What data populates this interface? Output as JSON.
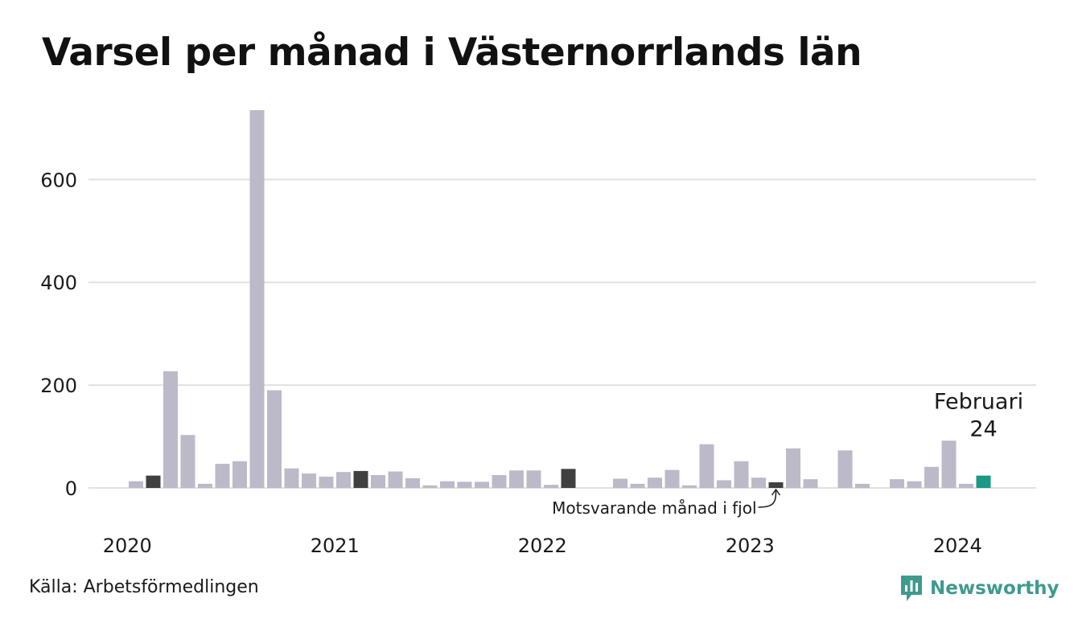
{
  "title": "Varsel per månad i Västernorrlands län",
  "source": "Källa: Arbetsförmedlingen",
  "brand": "Newsworthy",
  "colors": {
    "bar": "#bcbac8",
    "bar_previous_year": "#404040",
    "bar_current": "#1a9985",
    "grid": "#e1e1e1",
    "brand": "#3f9a8e"
  },
  "chart_data": {
    "type": "bar",
    "title": "Varsel per månad i Västernorrlands län",
    "xlabel": "",
    "ylabel": "",
    "ylim": [
      0,
      735
    ],
    "yticks": [
      0,
      200,
      400,
      600
    ],
    "xticks": [
      {
        "label": "2020",
        "category": "2020-01"
      },
      {
        "label": "2021",
        "category": "2021-01"
      },
      {
        "label": "2022",
        "category": "2022-01"
      },
      {
        "label": "2023",
        "category": "2023-01"
      },
      {
        "label": "2024",
        "category": "2024-01"
      }
    ],
    "grid": true,
    "categories": [
      "2020-01",
      "2020-02",
      "2020-03",
      "2020-04",
      "2020-05",
      "2020-06",
      "2020-07",
      "2020-08",
      "2020-09",
      "2020-10",
      "2020-11",
      "2020-12",
      "2021-01",
      "2021-02",
      "2021-03",
      "2021-04",
      "2021-05",
      "2021-06",
      "2021-07",
      "2021-08",
      "2021-09",
      "2021-10",
      "2021-11",
      "2021-12",
      "2022-01",
      "2022-02",
      "2022-03",
      "2022-04",
      "2022-05",
      "2022-06",
      "2022-07",
      "2022-08",
      "2022-09",
      "2022-10",
      "2022-11",
      "2022-12",
      "2023-01",
      "2023-02",
      "2023-03",
      "2023-04",
      "2023-05",
      "2023-06",
      "2023-07",
      "2023-08",
      "2023-09",
      "2023-10",
      "2023-11",
      "2023-12",
      "2024-01",
      "2024-02"
    ],
    "values": [
      13,
      24,
      227,
      103,
      8,
      47,
      52,
      735,
      190,
      38,
      28,
      22,
      31,
      33,
      25,
      32,
      19,
      5,
      13,
      12,
      12,
      25,
      34,
      34,
      6,
      37,
      0,
      0,
      18,
      8,
      20,
      35,
      5,
      85,
      15,
      52,
      20,
      11,
      77,
      17,
      0,
      73,
      8,
      0,
      17,
      13,
      41,
      92,
      8,
      24
    ],
    "highlight_previous_year": [
      "2020-02",
      "2021-02",
      "2022-02",
      "2023-02"
    ],
    "highlight_current": "2024-02",
    "annotations": {
      "current_label": "Februari",
      "current_value": "24",
      "previous_year_note": "Motsvarande månad i fjol"
    }
  }
}
